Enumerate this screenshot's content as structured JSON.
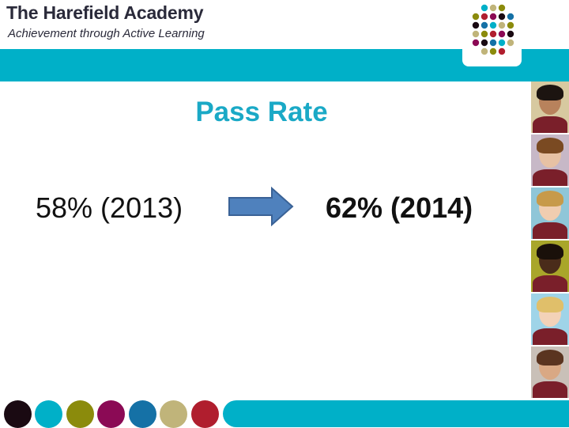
{
  "brand": {
    "name": "The Harefield Academy",
    "tagline": "Achievement through Active Learning"
  },
  "slide": {
    "title": "Pass Rate",
    "before": "58% (2013)",
    "after": "62% (2014)"
  },
  "colors": {
    "teal": "#00b0c8",
    "title_teal": "#1aa9c6",
    "arrow_fill": "#4f81bd",
    "arrow_stroke": "#3a6296",
    "footer_dots": [
      "#1a0a12",
      "#00b0c8",
      "#8b8b0c",
      "#8b0a55",
      "#1571a6",
      "#c0b47a",
      "#b01e2e"
    ]
  },
  "icons": {
    "arrow": "right-arrow-icon",
    "logo": "dot-grid-logo-icon"
  }
}
